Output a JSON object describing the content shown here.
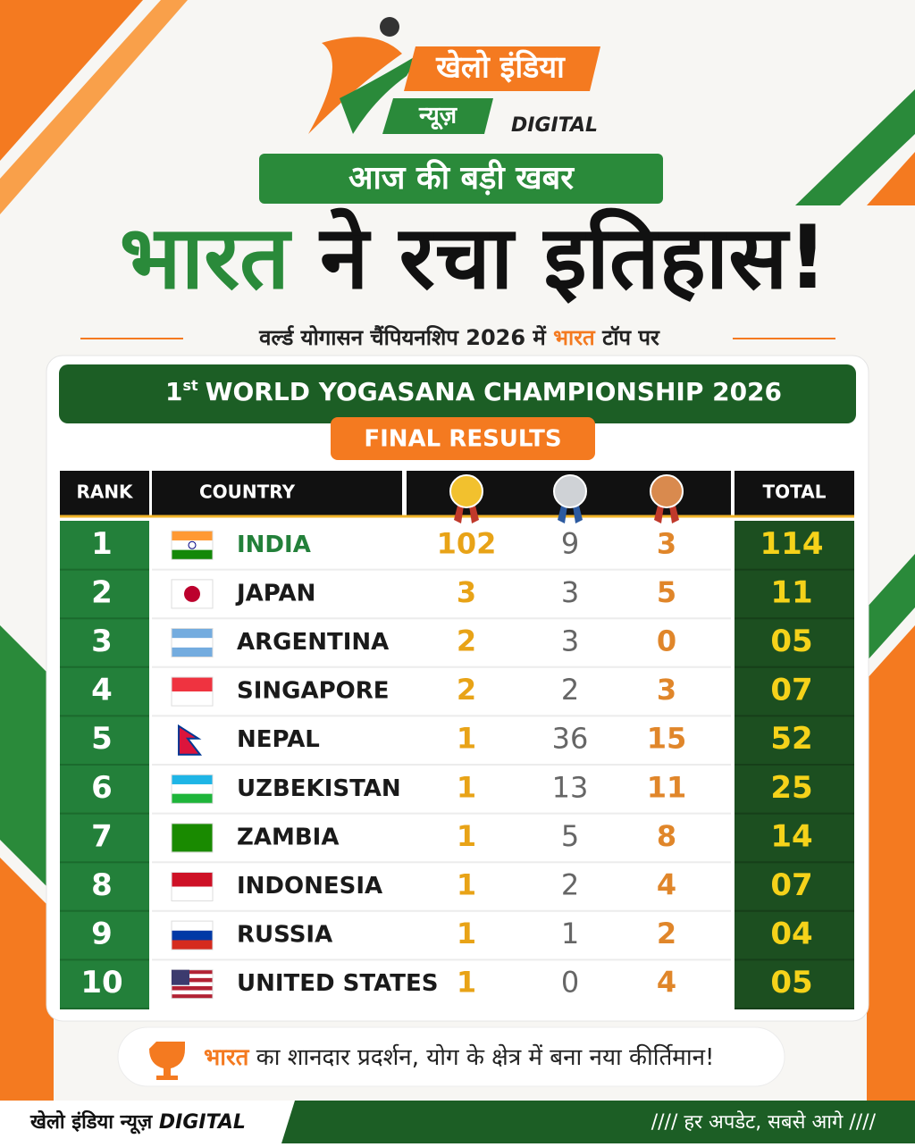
{
  "logo": {
    "line1": "खेलो इंडिया",
    "line2": "न्यूज़",
    "line3": "DIGITAL"
  },
  "tag": "आज की बड़ी खबर",
  "headline": {
    "highlight": "भारत",
    "rest": "ने रचा इतिहास!"
  },
  "subheadline": {
    "before": "वर्ल्ड योगासन चैंपियनशिप 2026 में",
    "highlight": "भारत",
    "after": "टॉप पर"
  },
  "table": {
    "title": {
      "ordinal": "1",
      "suffix": "st",
      "text": "WORLD YOGASANA CHAMPIONSHIP 2026"
    },
    "subtitle": "FINAL RESULTS",
    "headers": [
      "RANK",
      "COUNTRY",
      "TOTAL"
    ],
    "rows": [
      [
        "1",
        "INDIA",
        "102",
        "9",
        "3",
        "114"
      ],
      [
        "2",
        "JAPAN",
        "3",
        "3",
        "5",
        "11"
      ],
      [
        "3",
        "ARGENTINA",
        "2",
        "3",
        "0",
        "05"
      ],
      [
        "4",
        "SINGAPORE",
        "2",
        "2",
        "3",
        "07"
      ],
      [
        "5",
        "NEPAL",
        "1",
        "36",
        "15",
        "52"
      ],
      [
        "6",
        "UZBEKISTAN",
        "1",
        "13",
        "11",
        "25"
      ],
      [
        "7",
        "ZAMBIA",
        "1",
        "5",
        "8",
        "14"
      ],
      [
        "8",
        "INDONESIA",
        "1",
        "2",
        "4",
        "07"
      ],
      [
        "9",
        "RUSSIA",
        "1",
        "1",
        "2",
        "04"
      ],
      [
        "10",
        "UNITED STATES",
        "1",
        "0",
        "4",
        "05"
      ]
    ]
  },
  "banner": {
    "highlight": "भारत",
    "text": "का शानदार प्रदर्शन, योग के क्षेत्र में बना नया कीर्तिमान!"
  },
  "footer": {
    "left": "खेलो इंडिया न्यूज़",
    "left_suffix": "DIGITAL",
    "right": "////  हर अपडेट, सबसे आगे  ////"
  }
}
